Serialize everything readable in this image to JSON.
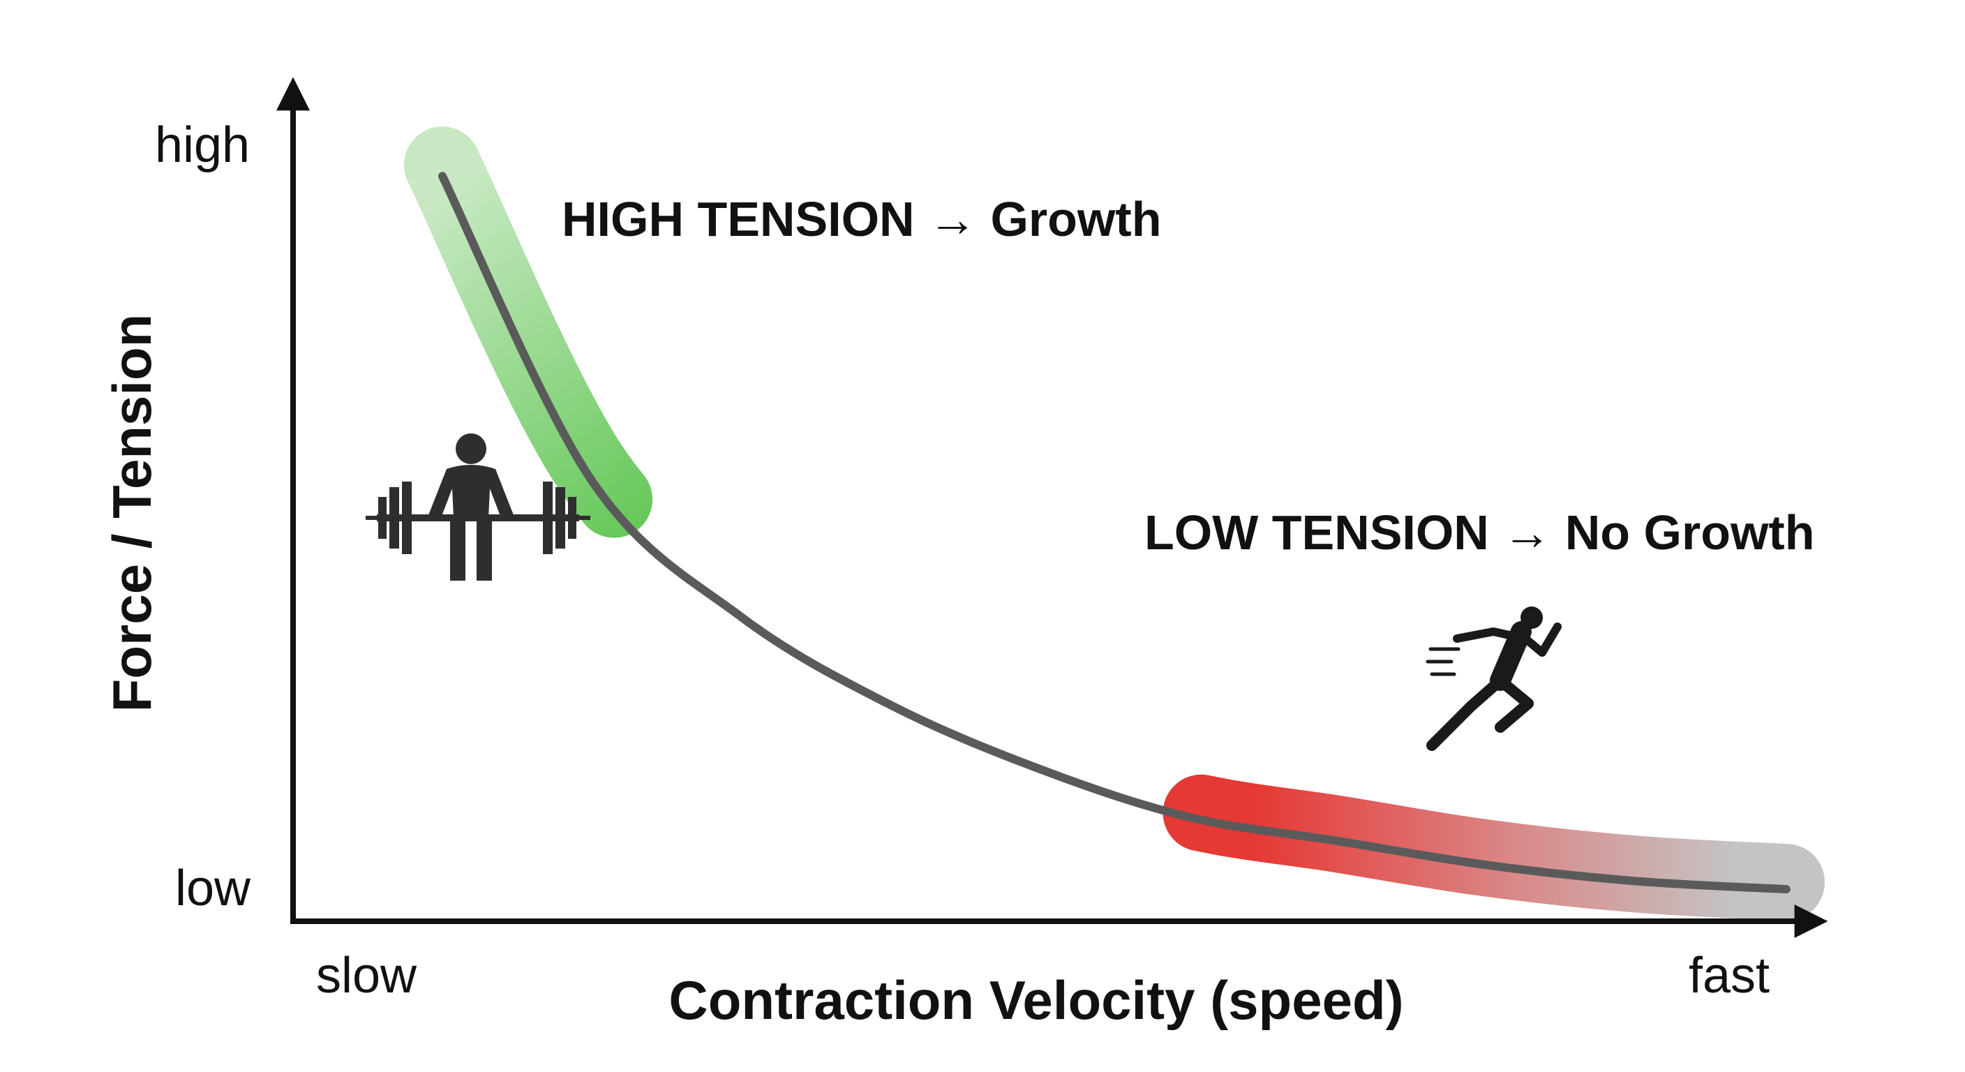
{
  "chart_data": {
    "type": "line",
    "title": "",
    "xlabel": "Contraction Velocity (speed)",
    "ylabel": "Force / Tension",
    "x_ticks": [
      "slow",
      "fast"
    ],
    "y_ticks": [
      "low",
      "high"
    ],
    "series": [
      {
        "x": [
          0.1,
          0.2,
          0.3,
          0.4,
          0.5,
          0.6,
          0.7,
          0.8,
          0.9,
          1.0
        ],
        "values": [
          0.93,
          0.55,
          0.38,
          0.27,
          0.19,
          0.13,
          0.1,
          0.07,
          0.05,
          0.04
        ]
      }
    ],
    "annotations": [
      {
        "label": "HIGH TENSION → Growth",
        "zone": "high-force / slow",
        "color": "#5cc54f"
      },
      {
        "label": "LOW TENSION → No Growth",
        "zone": "low-force / fast",
        "color": "#e53935"
      }
    ],
    "icons": [
      "weightlifter-icon",
      "sprinter-icon"
    ],
    "grid": false,
    "legend": "none"
  }
}
